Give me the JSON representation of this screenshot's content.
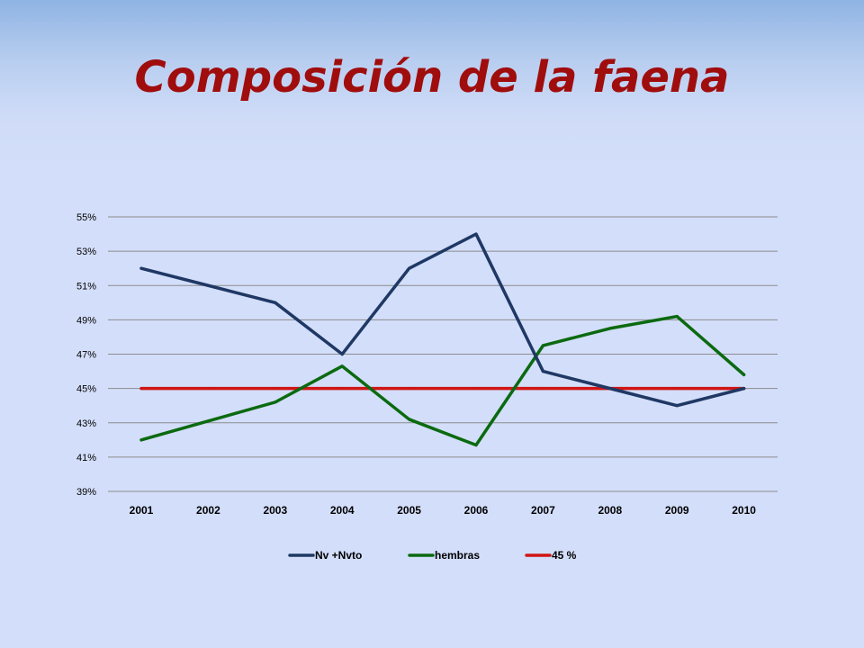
{
  "slide": {
    "title": "Composición de la faena"
  },
  "chart_data": {
    "type": "line",
    "title": "",
    "xlabel": "",
    "ylabel": "",
    "categories": [
      "2001",
      "2002",
      "2003",
      "2004",
      "2005",
      "2006",
      "2007",
      "2008",
      "2009",
      "2010"
    ],
    "y_ticks": [
      "39%",
      "41%",
      "43%",
      "45%",
      "47%",
      "49%",
      "51%",
      "53%",
      "55%"
    ],
    "ylim": [
      39,
      55
    ],
    "y_unit": "%",
    "grid": true,
    "legend_position": "bottom",
    "series": [
      {
        "name": "Nv +Nvto",
        "color": "#1f3864",
        "values": [
          52,
          51,
          50,
          47,
          52,
          54,
          46,
          45,
          44,
          45
        ]
      },
      {
        "name": "hembras",
        "color": "#0b6a10",
        "values": [
          42,
          43.1,
          44.2,
          46.3,
          43.2,
          41.7,
          47.5,
          48.5,
          49.2,
          45.8
        ]
      },
      {
        "name": "45 %",
        "color": "#d01515",
        "values": [
          45,
          45,
          45,
          45,
          45,
          45,
          45,
          45,
          45,
          45
        ]
      }
    ]
  }
}
